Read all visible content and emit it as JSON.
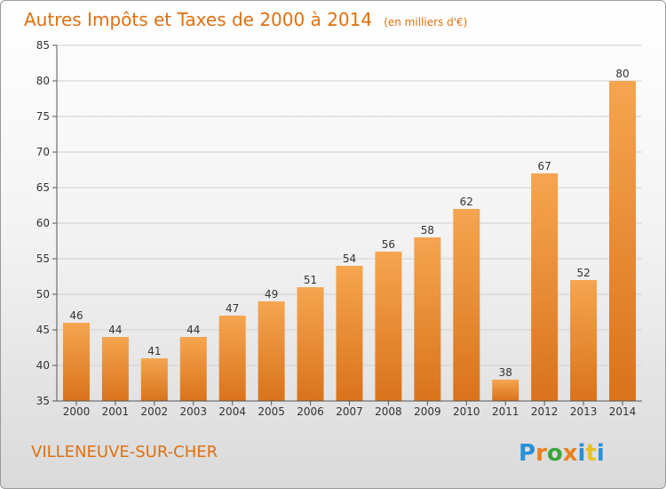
{
  "chart_data": {
    "type": "bar",
    "title": "Autres Impôts et Taxes de 2000 à 2014",
    "subtitle": "(en milliers d'€)",
    "categories": [
      "2000",
      "2001",
      "2002",
      "2003",
      "2004",
      "2005",
      "2006",
      "2007",
      "2008",
      "2009",
      "2010",
      "2011",
      "2012",
      "2013",
      "2014"
    ],
    "values": [
      46,
      44,
      41,
      44,
      47,
      49,
      51,
      54,
      56,
      58,
      62,
      38,
      67,
      52,
      80
    ],
    "ylim": [
      35,
      85
    ],
    "yticks": [
      35,
      40,
      45,
      50,
      55,
      60,
      65,
      70,
      75,
      80,
      85
    ],
    "grid": true,
    "bar_color_top": "#f6a550",
    "bar_color_bottom": "#d9731c"
  },
  "footer": {
    "place": "VILLENEUVE-SUR-CHER",
    "logo_letters": [
      "P",
      "r",
      "o",
      "x",
      "i",
      "t",
      "i"
    ],
    "logo_colors": [
      "#2a8fd6",
      "#e9801e",
      "#3aa63a",
      "#e9801e",
      "#2a8fd6",
      "#e9c21e",
      "#2a8fd6"
    ]
  }
}
